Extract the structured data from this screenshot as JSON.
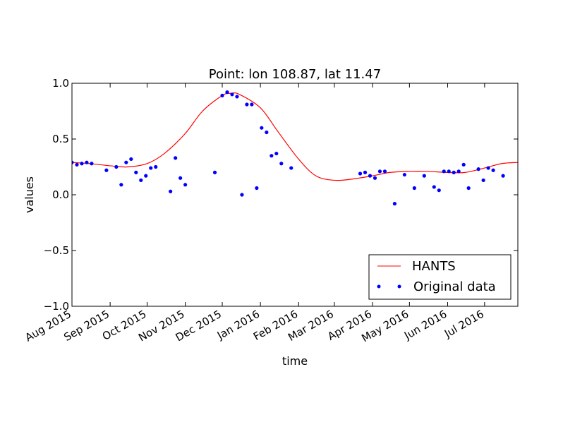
{
  "chart_data": {
    "type": "line",
    "title": "Point: lon 108.87, lat 11.47",
    "xlabel": "time",
    "ylabel": "values",
    "xlim": [
      "2015-08-01",
      "2016-07-28"
    ],
    "ylim": [
      -1.0,
      1.0
    ],
    "yticks": [
      -1.0,
      -0.5,
      0.0,
      0.5,
      1.0
    ],
    "ytick_labels": [
      "−1.0",
      "−0.5",
      "0.0",
      "0.5",
      "1.0"
    ],
    "xticks": [
      "2015-08-01",
      "2015-09-01",
      "2015-10-01",
      "2015-11-01",
      "2015-12-01",
      "2016-01-01",
      "2016-02-01",
      "2016-03-01",
      "2016-04-01",
      "2016-05-01",
      "2016-06-01",
      "2016-07-01"
    ],
    "xtick_labels": [
      "Aug 2015",
      "Sep 2015",
      "Oct 2015",
      "Nov 2015",
      "Dec 2015",
      "Jan 2016",
      "Feb 2016",
      "Mar 2016",
      "Apr 2016",
      "May 2016",
      "Jun 2016",
      "Jul 2016"
    ],
    "grid": false,
    "legend_position": "lower-right",
    "series": [
      {
        "name": "HANTS",
        "style": "line",
        "color": "#ff0000",
        "points": [
          [
            "2015-08-01",
            0.29
          ],
          [
            "2015-08-15",
            0.28
          ],
          [
            "2015-09-01",
            0.26
          ],
          [
            "2015-09-15",
            0.25
          ],
          [
            "2015-10-01",
            0.28
          ],
          [
            "2015-10-15",
            0.37
          ],
          [
            "2015-11-01",
            0.55
          ],
          [
            "2015-11-15",
            0.75
          ],
          [
            "2015-12-01",
            0.89
          ],
          [
            "2015-12-08",
            0.91
          ],
          [
            "2015-12-15",
            0.9
          ],
          [
            "2016-01-01",
            0.78
          ],
          [
            "2016-01-15",
            0.57
          ],
          [
            "2016-02-01",
            0.32
          ],
          [
            "2016-02-15",
            0.17
          ],
          [
            "2016-03-01",
            0.13
          ],
          [
            "2016-03-15",
            0.14
          ],
          [
            "2016-04-01",
            0.17
          ],
          [
            "2016-04-15",
            0.2
          ],
          [
            "2016-05-01",
            0.21
          ],
          [
            "2016-05-15",
            0.21
          ],
          [
            "2016-06-01",
            0.2
          ],
          [
            "2016-06-15",
            0.2
          ],
          [
            "2016-07-01",
            0.24
          ],
          [
            "2016-07-15",
            0.28
          ],
          [
            "2016-07-28",
            0.29
          ]
        ]
      },
      {
        "name": "Original data",
        "style": "points",
        "color": "#0000ff",
        "points": [
          [
            "2015-08-01",
            0.29
          ],
          [
            "2015-08-05",
            0.27
          ],
          [
            "2015-08-09",
            0.28
          ],
          [
            "2015-08-13",
            0.29
          ],
          [
            "2015-08-17",
            0.28
          ],
          [
            "2015-08-29",
            0.22
          ],
          [
            "2015-09-06",
            0.25
          ],
          [
            "2015-09-10",
            0.09
          ],
          [
            "2015-09-14",
            0.29
          ],
          [
            "2015-09-18",
            0.32
          ],
          [
            "2015-09-22",
            0.2
          ],
          [
            "2015-09-26",
            0.13
          ],
          [
            "2015-09-30",
            0.17
          ],
          [
            "2015-10-04",
            0.24
          ],
          [
            "2015-10-08",
            0.25
          ],
          [
            "2015-10-20",
            0.03
          ],
          [
            "2015-10-24",
            0.33
          ],
          [
            "2015-10-28",
            0.15
          ],
          [
            "2015-11-01",
            0.09
          ],
          [
            "2015-11-25",
            0.2
          ],
          [
            "2015-12-01",
            0.89
          ],
          [
            "2015-12-05",
            0.92
          ],
          [
            "2015-12-09",
            0.9
          ],
          [
            "2015-12-13",
            0.88
          ],
          [
            "2015-12-17",
            0.0
          ],
          [
            "2015-12-21",
            0.81
          ],
          [
            "2015-12-25",
            0.81
          ],
          [
            "2015-12-29",
            0.06
          ],
          [
            "2016-01-02",
            0.6
          ],
          [
            "2016-01-06",
            0.56
          ],
          [
            "2016-01-10",
            0.35
          ],
          [
            "2016-01-14",
            0.37
          ],
          [
            "2016-01-18",
            0.28
          ],
          [
            "2016-01-26",
            0.24
          ],
          [
            "2016-03-22",
            0.19
          ],
          [
            "2016-03-26",
            0.2
          ],
          [
            "2016-03-30",
            0.17
          ],
          [
            "2016-04-03",
            0.15
          ],
          [
            "2016-04-07",
            0.21
          ],
          [
            "2016-04-11",
            0.21
          ],
          [
            "2016-04-19",
            -0.08
          ],
          [
            "2016-04-27",
            0.18
          ],
          [
            "2016-05-05",
            0.06
          ],
          [
            "2016-05-13",
            0.17
          ],
          [
            "2016-05-21",
            0.07
          ],
          [
            "2016-05-25",
            0.04
          ],
          [
            "2016-05-29",
            0.21
          ],
          [
            "2016-06-02",
            0.21
          ],
          [
            "2016-06-06",
            0.2
          ],
          [
            "2016-06-10",
            0.21
          ],
          [
            "2016-06-14",
            0.27
          ],
          [
            "2016-06-18",
            0.06
          ],
          [
            "2016-06-26",
            0.23
          ],
          [
            "2016-06-30",
            0.13
          ],
          [
            "2016-07-04",
            0.24
          ],
          [
            "2016-07-08",
            0.22
          ],
          [
            "2016-07-16",
            0.17
          ]
        ]
      }
    ]
  }
}
